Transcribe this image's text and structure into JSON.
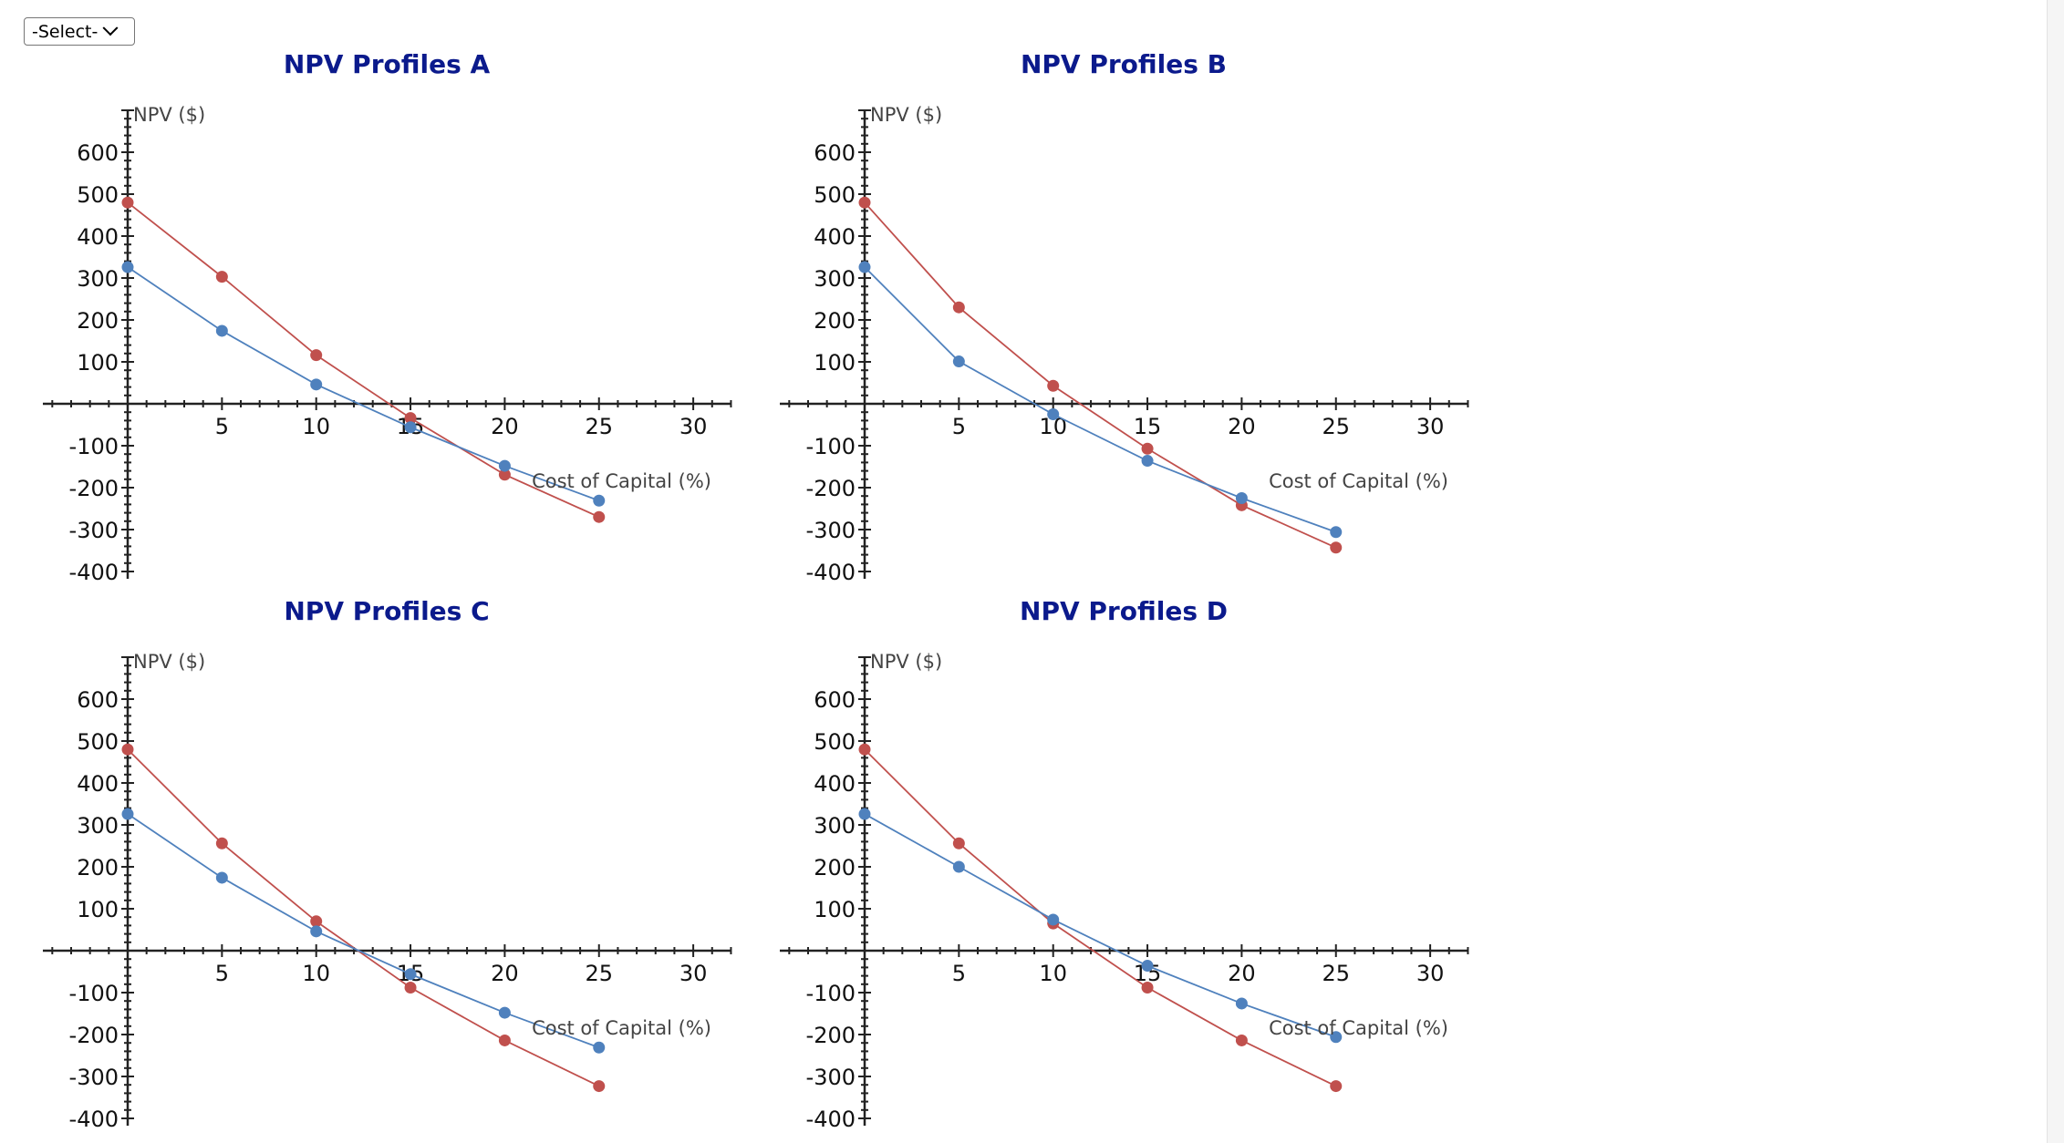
{
  "select": {
    "value": "-Select-"
  },
  "colors": {
    "series_red": "#c0504d",
    "series_blue": "#4f81bd",
    "title": "#0b1a8c"
  },
  "chart_data": [
    {
      "type": "line",
      "title": "NPV Profiles A",
      "xlabel": "Cost of Capital (%)",
      "ylabel": "NPV ($)",
      "x": [
        0,
        5,
        10,
        15,
        20,
        25
      ],
      "xlim": [
        -4.5,
        32
      ],
      "ylim": [
        -400,
        700
      ],
      "xticks": [
        5,
        10,
        15,
        20,
        25,
        30
      ],
      "yticks": [
        600,
        500,
        400,
        300,
        200,
        100,
        -100,
        -200,
        -300,
        -400
      ],
      "series": [
        {
          "color": "#c0504d",
          "values": [
            480,
            303,
            116,
            -34,
            -169,
            -270
          ]
        },
        {
          "color": "#4f81bd",
          "values": [
            326,
            174,
            46,
            -56,
            -148,
            -231
          ]
        }
      ]
    },
    {
      "type": "line",
      "title": "NPV Profiles B",
      "xlabel": "Cost of Capital (%)",
      "ylabel": "NPV ($)",
      "x": [
        0,
        5,
        10,
        15,
        20,
        25
      ],
      "xlim": [
        -4.5,
        32
      ],
      "ylim": [
        -400,
        700
      ],
      "xticks": [
        5,
        10,
        15,
        20,
        25,
        30
      ],
      "yticks": [
        600,
        500,
        400,
        300,
        200,
        100,
        -100,
        -200,
        -300,
        -400
      ],
      "series": [
        {
          "color": "#c0504d",
          "values": [
            480,
            230,
            43,
            -107,
            -242,
            -343
          ]
        },
        {
          "color": "#4f81bd",
          "values": [
            326,
            101,
            -25,
            -136,
            -225,
            -306
          ]
        }
      ]
    },
    {
      "type": "line",
      "title": "NPV Profiles C",
      "xlabel": "Cost of Capital (%)",
      "ylabel": "NPV ($)",
      "x": [
        0,
        5,
        10,
        15,
        20,
        25
      ],
      "xlim": [
        -4.5,
        32
      ],
      "ylim": [
        -400,
        700
      ],
      "xticks": [
        5,
        10,
        15,
        20,
        25,
        30
      ],
      "yticks": [
        600,
        500,
        400,
        300,
        200,
        100,
        -100,
        -200,
        -300,
        -400
      ],
      "series": [
        {
          "color": "#c0504d",
          "values": [
            480,
            256,
            70,
            -88,
            -214,
            -323
          ]
        },
        {
          "color": "#4f81bd",
          "values": [
            326,
            174,
            46,
            -56,
            -148,
            -231
          ]
        }
      ]
    },
    {
      "type": "line",
      "title": "NPV Profiles D",
      "xlabel": "Cost of Capital (%)",
      "ylabel": "NPV ($)",
      "x": [
        0,
        5,
        10,
        15,
        20,
        25
      ],
      "xlim": [
        -4.5,
        32
      ],
      "ylim": [
        -400,
        700
      ],
      "xticks": [
        5,
        10,
        15,
        20,
        25,
        30
      ],
      "yticks": [
        600,
        500,
        400,
        300,
        200,
        100,
        -100,
        -200,
        -300,
        -400
      ],
      "series": [
        {
          "color": "#c0504d",
          "values": [
            480,
            256,
            65,
            -88,
            -214,
            -323
          ]
        },
        {
          "color": "#4f81bd",
          "values": [
            326,
            200,
            74,
            -36,
            -126,
            -206
          ]
        }
      ]
    }
  ]
}
